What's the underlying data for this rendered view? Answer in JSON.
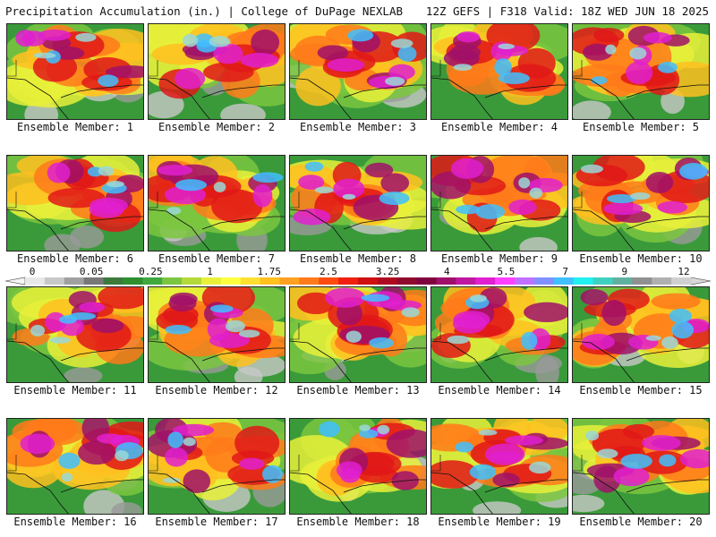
{
  "header": {
    "left": "Precipitation Accumulation (in.) | College of DuPage NEXLAB",
    "right": "12Z GEFS | F318 Valid: 18Z WED JUN 18 2025"
  },
  "panels": [
    {
      "label": "Ensemble Member: 1"
    },
    {
      "label": "Ensemble Member: 2"
    },
    {
      "label": "Ensemble Member: 3"
    },
    {
      "label": "Ensemble Member: 4"
    },
    {
      "label": "Ensemble Member: 5"
    },
    {
      "label": "Ensemble Member: 6"
    },
    {
      "label": "Ensemble Member: 7"
    },
    {
      "label": "Ensemble Member: 8"
    },
    {
      "label": "Ensemble Member: 9"
    },
    {
      "label": "Ensemble Member: 10"
    },
    {
      "label": "Ensemble Member: 11"
    },
    {
      "label": "Ensemble Member: 12"
    },
    {
      "label": "Ensemble Member: 13"
    },
    {
      "label": "Ensemble Member: 14"
    },
    {
      "label": "Ensemble Member: 15"
    },
    {
      "label": "Ensemble Member: 16"
    },
    {
      "label": "Ensemble Member: 17"
    },
    {
      "label": "Ensemble Member: 18"
    },
    {
      "label": "Ensemble Member: 19"
    },
    {
      "label": "Ensemble Member: 20"
    }
  ],
  "color_scale": {
    "tick_labels": [
      "0",
      "0.05",
      "0.25",
      "1",
      "1.75",
      "2.5",
      "3.25",
      "4",
      "5.5",
      "7",
      "9",
      "12"
    ],
    "colors": [
      "#e8e8e8",
      "#c8c8c8",
      "#a0a0a0",
      "#787878",
      "#3c7a3c",
      "#2f8f2f",
      "#3fa83f",
      "#7bc63f",
      "#b5d93a",
      "#e8f03a",
      "#ffff40",
      "#ffe030",
      "#ffc020",
      "#ffa020",
      "#ff7a1a",
      "#ff4a10",
      "#f02010",
      "#d01010",
      "#b00a20",
      "#900a30",
      "#800040",
      "#a0106a",
      "#c018a0",
      "#e020d0",
      "#ff40ff",
      "#c070ff",
      "#8090ff",
      "#40c0ff",
      "#20f0f0",
      "#40d0c0",
      "#60b0a0",
      "#909090",
      "#b0b0b0",
      "#d0d0d0"
    ]
  }
}
